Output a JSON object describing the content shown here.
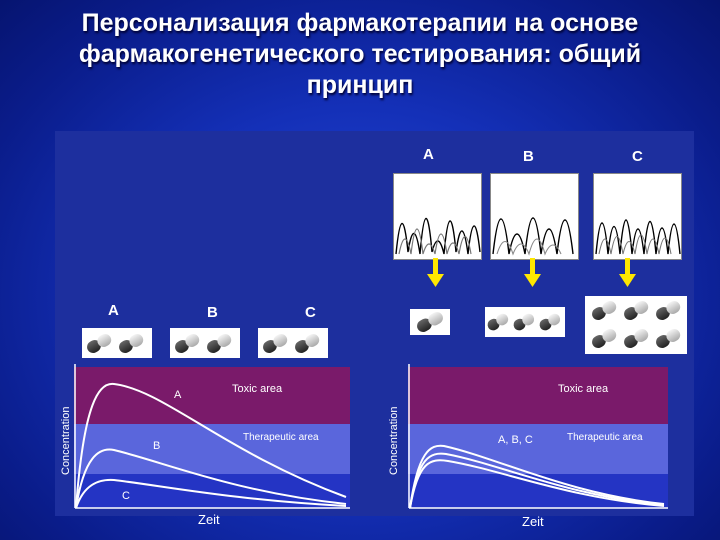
{
  "title": {
    "line1": "Персонализация фармакотерапии на основе",
    "line2": "фармакогенетического  тестирования: общий",
    "line3": "принцип"
  },
  "genotypes": [
    "A",
    "B",
    "C"
  ],
  "pill_groups": [
    "A",
    "B",
    "C"
  ],
  "left_plot": {
    "y_label": "Concentration",
    "x_label": "Zeit",
    "toxic_label": "Toxic area",
    "therapeutic_label": "Therapeutic area",
    "curve_labels": [
      "A",
      "B",
      "C"
    ]
  },
  "right_plot": {
    "y_label": "Concentration",
    "x_label": "Zeit",
    "toxic_label": "Toxic area",
    "therapeutic_label": "Therapeutic area",
    "curve_label": "A, B, C"
  },
  "colors": {
    "background": "#1430b8",
    "toxic_zone": "#7a1a6a",
    "therapeutic_zone": "#5a66dc",
    "arrow": "#ffe800"
  }
}
